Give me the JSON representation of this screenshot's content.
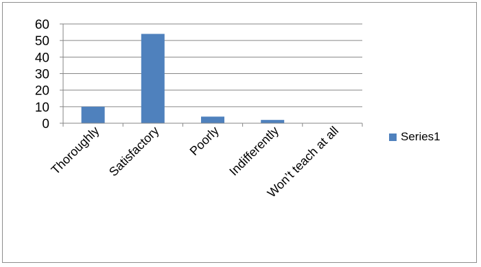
{
  "chart_data": {
    "type": "bar",
    "categories": [
      "Thoroughly",
      "Satisfactory",
      "Poorly",
      "Indifferently",
      "Won’t teach at all"
    ],
    "series": [
      {
        "name": "Series1",
        "values": [
          10,
          54,
          4,
          2,
          0
        ],
        "color": "#4f81bd"
      }
    ],
    "ylim": [
      0,
      60
    ],
    "yticks": [
      0,
      10,
      20,
      30,
      40,
      50,
      60
    ],
    "grid": true,
    "legend": "right"
  }
}
